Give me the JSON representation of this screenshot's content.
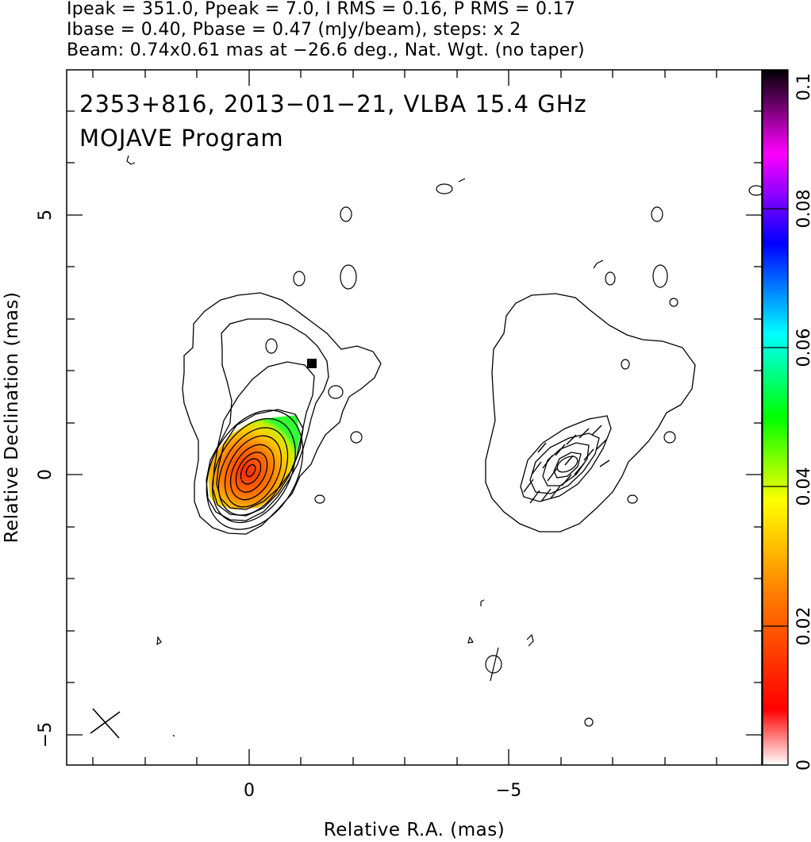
{
  "header": {
    "line1": "Ipeak = 351.0, Ppeak = 7.0, I RMS = 0.16, P RMS = 0.17",
    "line2": "Ibase = 0.40, Pbase = 0.47 (mJy/beam), steps: x 2",
    "line3": "Beam: 0.74x0.61 mas at −26.6 deg., Nat. Wgt. (no taper)"
  },
  "chart_data": {
    "type": "heatmap",
    "title": "2353+816, 2013−01−21, VLBA 15.4 GHz",
    "subtitle": "MOJAVE Program",
    "xlabel": "Relative R.A. (mas)",
    "ylabel": "Relative Declination (mas)",
    "xlim": [
      3.5,
      -10
    ],
    "ylim": [
      -5.5,
      7.9
    ],
    "x_ticks": [
      0,
      -5
    ],
    "x_tick_labels": [
      "0",
      "−5"
    ],
    "y_ticks": [
      5,
      0,
      -5
    ],
    "y_tick_labels": [
      "5",
      "0",
      "−5"
    ],
    "colorbar": {
      "range": [
        0,
        0.1
      ],
      "ticks": [
        0,
        0.02,
        0.04,
        0.06,
        0.08,
        0.1
      ],
      "tick_labels": [
        "0",
        "0.02",
        "0.04",
        "0.06",
        "0.08",
        "0.1"
      ]
    },
    "core": {
      "x": 0,
      "y": 0
    },
    "peak_total_intensity_mJy_per_beam": 351.0,
    "peak_polarized_intensity_mJy_per_beam": 7.0,
    "contour_base_mJy_per_beam": 0.4,
    "contour_step_factor": 2,
    "beam": {
      "major_mas": 0.74,
      "minor_mas": 0.61,
      "pa_deg": -26.6
    },
    "panels": [
      "total intensity contours with fractional polarization colour",
      "polarized intensity contours with EVPA sticks"
    ]
  },
  "colors": {
    "colormap": [
      "#ffffff",
      "#ff0000",
      "#ff8800",
      "#ffff00",
      "#00ff00",
      "#00ffff",
      "#0000ff",
      "#ff00ff",
      "#000000"
    ],
    "frame": "#000000"
  }
}
